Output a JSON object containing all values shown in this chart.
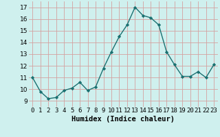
{
  "x": [
    0,
    1,
    2,
    3,
    4,
    5,
    6,
    7,
    8,
    9,
    10,
    11,
    12,
    13,
    14,
    15,
    16,
    17,
    18,
    19,
    20,
    21,
    22,
    23
  ],
  "y": [
    11.0,
    9.8,
    9.2,
    9.3,
    9.9,
    10.1,
    10.6,
    9.9,
    10.2,
    11.8,
    13.2,
    14.5,
    15.5,
    17.0,
    16.3,
    16.1,
    15.5,
    13.2,
    12.1,
    11.1,
    11.1,
    11.5,
    11.0,
    12.1
  ],
  "xlabel": "Humidex (Indice chaleur)",
  "ylim": [
    8.5,
    17.5
  ],
  "xlim": [
    -0.5,
    23.5
  ],
  "yticks": [
    9,
    10,
    11,
    12,
    13,
    14,
    15,
    16,
    17
  ],
  "xtick_labels": [
    "0",
    "1",
    "2",
    "3",
    "4",
    "5",
    "6",
    "7",
    "8",
    "9",
    "10",
    "11",
    "12",
    "13",
    "14",
    "15",
    "16",
    "17",
    "18",
    "19",
    "20",
    "21",
    "22",
    "23"
  ],
  "line_color": "#1a7070",
  "marker": "D",
  "marker_size": 2.2,
  "bg_color": "#cff0ee",
  "grid_color": "#d4a0a0",
  "label_fontsize": 7.5,
  "tick_fontsize": 6.5
}
